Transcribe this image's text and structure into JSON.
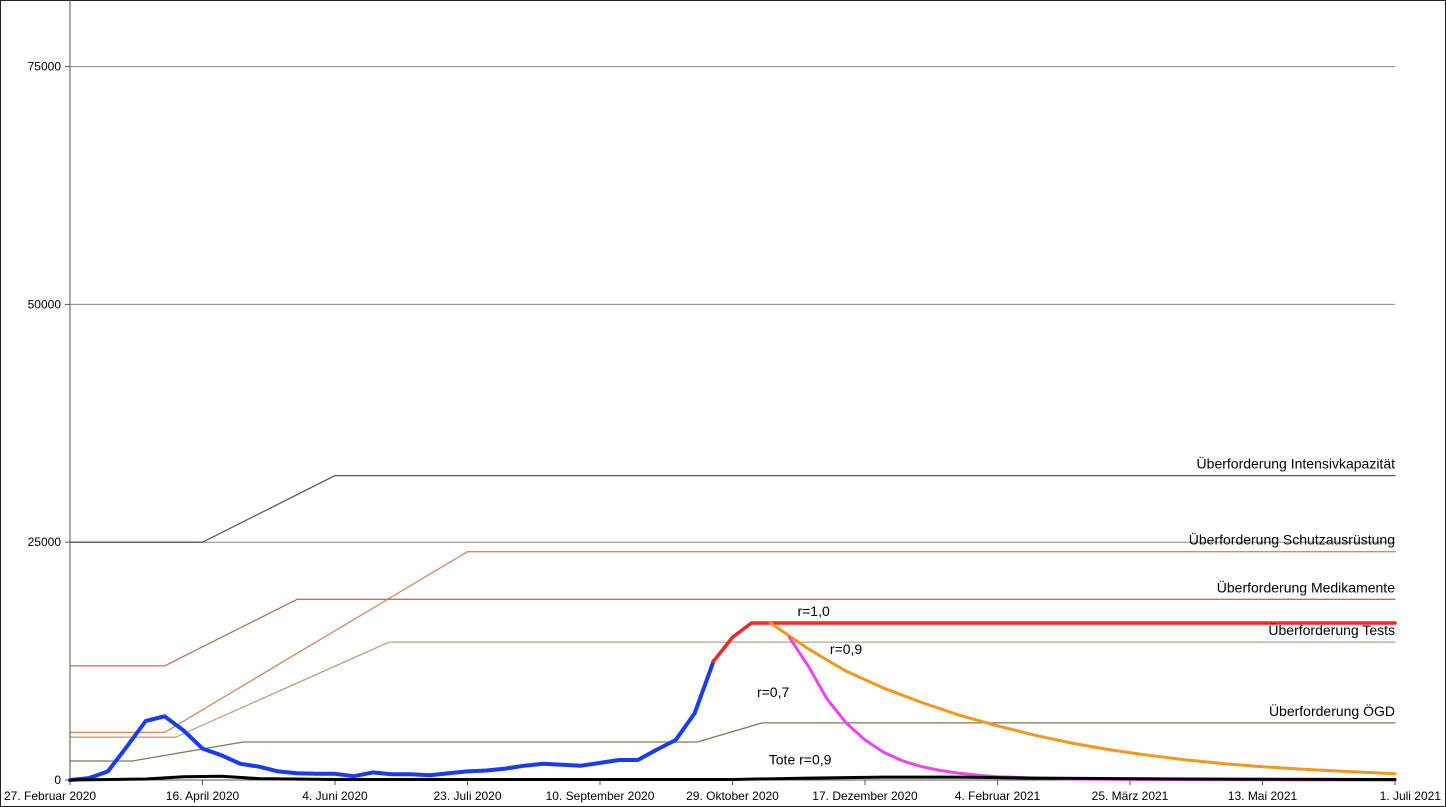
{
  "chart_data": {
    "type": "line",
    "title": "",
    "xlabel": "",
    "ylabel": "",
    "x_range": [
      "2020-02-27",
      "2021-07-01"
    ],
    "ylim": [
      0,
      82000
    ],
    "grid": true,
    "x_ticks": [
      {
        "date": "2020-02-27",
        "label": "27. Februar 2020"
      },
      {
        "date": "2020-04-16",
        "label": "16. April 2020"
      },
      {
        "date": "2020-06-04",
        "label": "4. Juni 2020"
      },
      {
        "date": "2020-07-23",
        "label": "23. Juli 2020"
      },
      {
        "date": "2020-09-10",
        "label": "10. September 2020"
      },
      {
        "date": "2020-10-29",
        "label": "29. Oktober 2020"
      },
      {
        "date": "2020-12-17",
        "label": "17. Dezember 2020"
      },
      {
        "date": "2021-02-04",
        "label": "4. Februar 2021"
      },
      {
        "date": "2021-03-25",
        "label": "25. März 2021"
      },
      {
        "date": "2021-05-13",
        "label": "13. Mai 2021"
      },
      {
        "date": "2021-07-01",
        "label": "1. Juli 2021"
      }
    ],
    "y_ticks": [
      {
        "value": 0,
        "label": "0"
      },
      {
        "value": 25000,
        "label": "25000"
      },
      {
        "value": 50000,
        "label": "50000"
      },
      {
        "value": 75000,
        "label": "75000"
      }
    ],
    "series": [
      {
        "name": "Überforderung Intensivkapazität",
        "color": "#555570",
        "width": 1.3,
        "points": [
          [
            "2020-02-27",
            25000
          ],
          [
            "2020-04-16",
            25000
          ],
          [
            "2020-06-04",
            32000
          ],
          [
            "2021-07-01",
            32000
          ]
        ]
      },
      {
        "name": "Überforderung Schutzausrüstung",
        "color": "#d08a6a",
        "width": 1.3,
        "points": [
          [
            "2020-02-27",
            5000
          ],
          [
            "2020-04-02",
            5000
          ],
          [
            "2020-07-23",
            24000
          ],
          [
            "2021-07-01",
            24000
          ]
        ]
      },
      {
        "name": "Überforderung Medikamente",
        "color": "#b8735a",
        "width": 1.3,
        "points": [
          [
            "2020-02-27",
            12000
          ],
          [
            "2020-04-02",
            12000
          ],
          [
            "2020-05-21",
            19000
          ],
          [
            "2021-07-01",
            19000
          ]
        ]
      },
      {
        "name": "Überforderung Tests",
        "color": "#c0a08a",
        "width": 1.3,
        "points": [
          [
            "2020-02-27",
            4500
          ],
          [
            "2020-04-06",
            4500
          ],
          [
            "2020-06-24",
            14500
          ],
          [
            "2021-07-01",
            14500
          ]
        ]
      },
      {
        "name": "Überforderung ÖGD",
        "color": "#7a7a55",
        "width": 1.3,
        "points": [
          [
            "2020-02-27",
            2000
          ],
          [
            "2020-03-21",
            2000
          ],
          [
            "2020-05-01",
            4000
          ],
          [
            "2020-10-16",
            4000
          ],
          [
            "2020-11-09",
            6000
          ],
          [
            "2021-07-01",
            6000
          ]
        ]
      },
      {
        "name": "",
        "color": "#1a3cf0",
        "width": 4,
        "points": [
          [
            "2020-02-27",
            0
          ],
          [
            "2020-03-05",
            200
          ],
          [
            "2020-03-12",
            900
          ],
          [
            "2020-03-19",
            3500
          ],
          [
            "2020-03-26",
            6200
          ],
          [
            "2020-04-02",
            6700
          ],
          [
            "2020-04-09",
            5200
          ],
          [
            "2020-04-16",
            3300
          ],
          [
            "2020-04-23",
            2600
          ],
          [
            "2020-04-30",
            1700
          ],
          [
            "2020-05-07",
            1400
          ],
          [
            "2020-05-14",
            900
          ],
          [
            "2020-05-21",
            700
          ],
          [
            "2020-05-28",
            650
          ],
          [
            "2020-06-04",
            650
          ],
          [
            "2020-06-11",
            400
          ],
          [
            "2020-06-18",
            800
          ],
          [
            "2020-06-25",
            600
          ],
          [
            "2020-07-02",
            600
          ],
          [
            "2020-07-09",
            500
          ],
          [
            "2020-07-16",
            700
          ],
          [
            "2020-07-23",
            900
          ],
          [
            "2020-07-30",
            1000
          ],
          [
            "2020-08-06",
            1200
          ],
          [
            "2020-08-13",
            1500
          ],
          [
            "2020-08-20",
            1700
          ],
          [
            "2020-08-27",
            1600
          ],
          [
            "2020-09-03",
            1500
          ],
          [
            "2020-09-10",
            1800
          ],
          [
            "2020-09-17",
            2100
          ],
          [
            "2020-09-24",
            2100
          ],
          [
            "2020-10-01",
            3200
          ],
          [
            "2020-10-08",
            4200
          ],
          [
            "2020-10-15",
            7000
          ],
          [
            "2020-10-22",
            12500
          ]
        ]
      },
      {
        "name": "r=1,0",
        "color": "#ee2a22",
        "width": 3.5,
        "points": [
          [
            "2020-10-22",
            12500
          ],
          [
            "2020-10-29",
            15000
          ],
          [
            "2020-11-05",
            16500
          ],
          [
            "2021-07-01",
            16500
          ]
        ]
      },
      {
        "name": "r=0,9",
        "color": "#f09820",
        "width": 3,
        "points": [
          [
            "2020-11-12",
            16500
          ],
          [
            "2020-11-19",
            15150
          ],
          [
            "2020-11-26",
            13800
          ],
          [
            "2020-12-03",
            12600
          ],
          [
            "2020-12-10",
            11450
          ],
          [
            "2020-12-24",
            9650
          ],
          [
            "2021-01-07",
            8150
          ],
          [
            "2021-01-21",
            6800
          ],
          [
            "2021-02-04",
            5700
          ],
          [
            "2021-02-18",
            4700
          ],
          [
            "2021-03-04",
            3850
          ],
          [
            "2021-03-18",
            3150
          ],
          [
            "2021-04-01",
            2600
          ],
          [
            "2021-04-15",
            2100
          ],
          [
            "2021-04-29",
            1700
          ],
          [
            "2021-05-13",
            1400
          ],
          [
            "2021-05-27",
            1150
          ],
          [
            "2021-06-10",
            950
          ],
          [
            "2021-06-24",
            750
          ],
          [
            "2021-07-01",
            650
          ]
        ]
      },
      {
        "name": "r=0,7",
        "color": "#ee44ee",
        "width": 3,
        "points": [
          [
            "2020-11-19",
            15000
          ],
          [
            "2020-11-26",
            12000
          ],
          [
            "2020-12-03",
            8500
          ],
          [
            "2020-12-10",
            6000
          ],
          [
            "2020-12-17",
            4200
          ],
          [
            "2020-12-24",
            2900
          ],
          [
            "2020-12-31",
            2000
          ],
          [
            "2021-01-07",
            1400
          ],
          [
            "2021-01-14",
            1000
          ],
          [
            "2021-01-21",
            700
          ],
          [
            "2021-01-28",
            500
          ],
          [
            "2021-02-04",
            350
          ],
          [
            "2021-02-18",
            200
          ],
          [
            "2021-03-04",
            100
          ],
          [
            "2021-04-01",
            50
          ],
          [
            "2021-07-01",
            0
          ]
        ]
      },
      {
        "name": "Tote r=0,9",
        "color": "#000000",
        "width": 3,
        "points": [
          [
            "2020-02-27",
            0
          ],
          [
            "2020-03-26",
            100
          ],
          [
            "2020-04-09",
            350
          ],
          [
            "2020-04-23",
            400
          ],
          [
            "2020-05-07",
            150
          ],
          [
            "2020-06-04",
            50
          ],
          [
            "2020-10-29",
            50
          ],
          [
            "2020-11-26",
            200
          ],
          [
            "2020-12-24",
            300
          ],
          [
            "2021-01-21",
            300
          ],
          [
            "2021-02-18",
            200
          ],
          [
            "2021-04-15",
            100
          ],
          [
            "2021-07-01",
            50
          ]
        ]
      }
    ],
    "annotations": [
      {
        "text": "Überforderung Intensivkapazität",
        "date": "2021-07-01",
        "value": 32000,
        "anchor": "end"
      },
      {
        "text": "Überforderung Schutzausrüstung",
        "date": "2021-07-01",
        "value": 24000,
        "anchor": "end"
      },
      {
        "text": "Überforderung Medikamente",
        "date": "2021-07-01",
        "value": 19000,
        "anchor": "end"
      },
      {
        "text": "Überforderung Tests",
        "date": "2021-07-01",
        "value": 14500,
        "anchor": "end"
      },
      {
        "text": "Überforderung ÖGD",
        "date": "2021-07-01",
        "value": 6000,
        "anchor": "end"
      },
      {
        "text": "r=1,0",
        "date": "2020-11-28",
        "value": 16500,
        "anchor": "middle"
      },
      {
        "text": "r=0,9",
        "date": "2020-12-10",
        "value": 12500,
        "anchor": "middle"
      },
      {
        "text": "r=0,7",
        "date": "2020-11-19",
        "value": 8000,
        "anchor": "end"
      },
      {
        "text": "Tote r=0,9",
        "date": "2020-11-23",
        "value": 900,
        "anchor": "middle"
      }
    ]
  }
}
